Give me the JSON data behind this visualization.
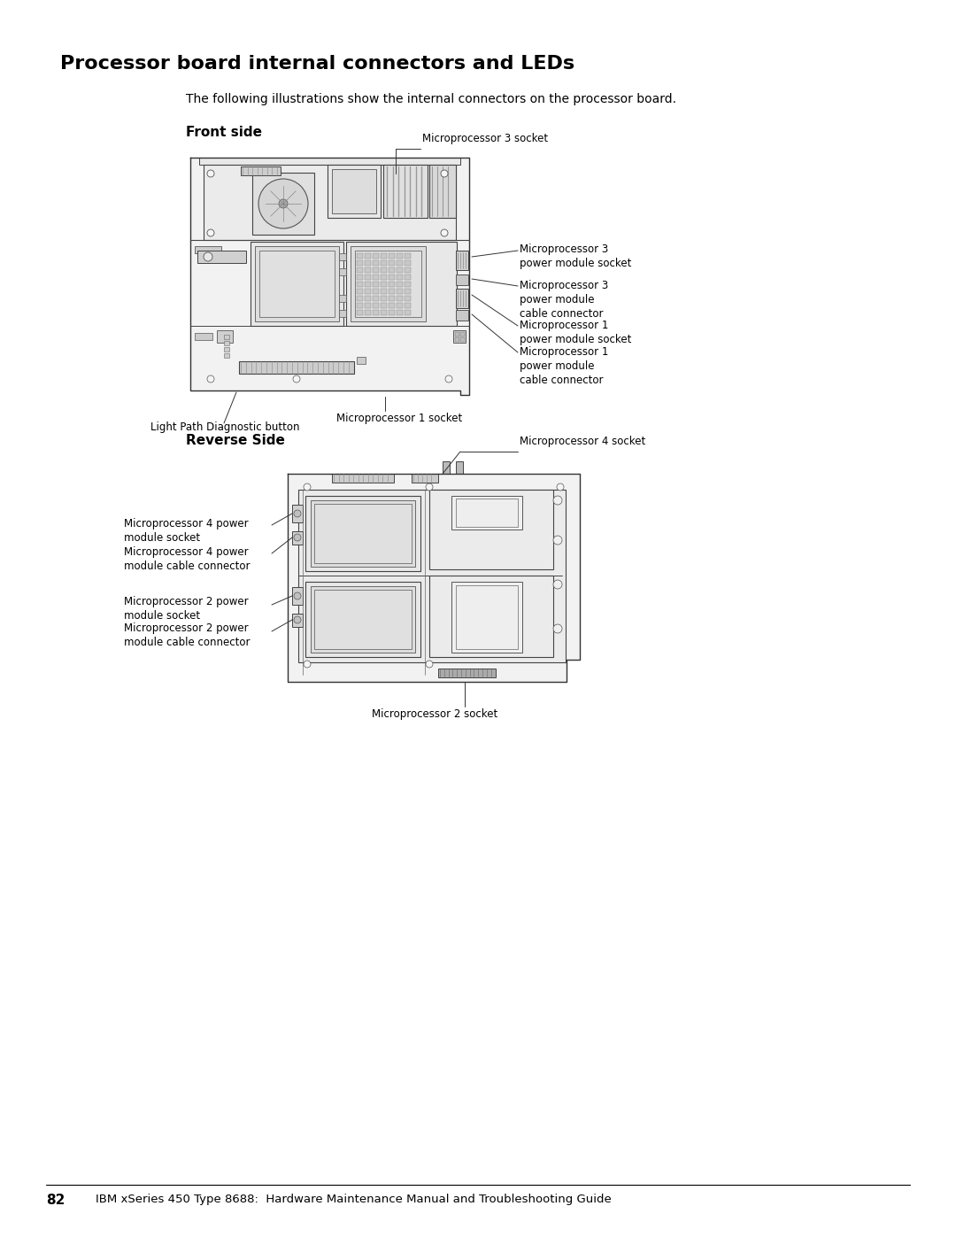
{
  "title": "Processor board internal connectors and LEDs",
  "subtitle": "The following illustrations show the internal connectors on the processor board.",
  "front_side_label": "Front side",
  "reverse_side_label": "Reverse Side",
  "footer_page": "82",
  "footer_text": "IBM xSeries 450 Type 8688:  Hardware Maintenance Manual and Troubleshooting Guide",
  "bg_color": "#ffffff",
  "text_color": "#000000",
  "board_line_color": "#333333",
  "board_fill": "#f5f5f5",
  "component_fill": "#e0e0e0",
  "component_edge": "#555555"
}
